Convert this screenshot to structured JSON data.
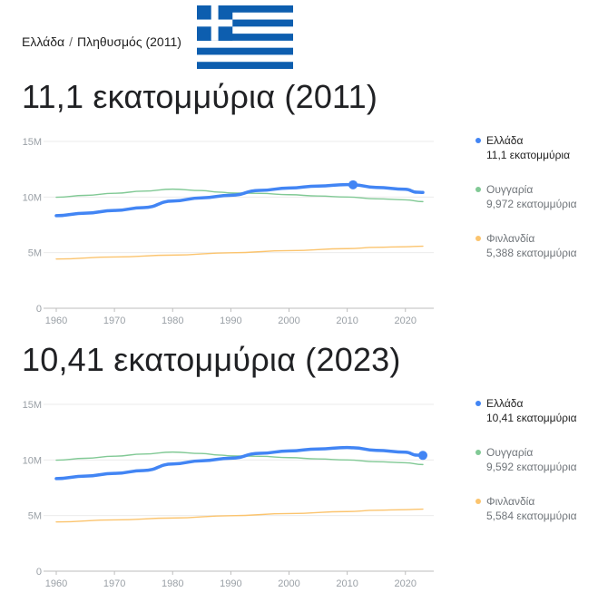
{
  "breadcrumb": {
    "country": "Ελλάδα",
    "separator": "/",
    "metric": "Πληθυσμός (2011)"
  },
  "flag": {
    "blue": "#0d5eaf",
    "white": "#ffffff"
  },
  "colors": {
    "greece": "#4285f4",
    "hungary": "#81c995",
    "finland": "#fbc46e",
    "grid": "#ebebeb",
    "axis": "#bdbdbd"
  },
  "charts": [
    {
      "headline": "11,1 εκατομμύρια (2011)",
      "legend": [
        {
          "name": "Ελλάδα",
          "value": "11,1 εκατομμύρια"
        },
        {
          "name": "Ουγγαρία",
          "value": "9,972 εκατομμύρια"
        },
        {
          "name": "Φινλανδία",
          "value": "5,388 εκατομμύρια"
        }
      ]
    },
    {
      "headline": "10,41 εκατομμύρια (2023)",
      "legend": [
        {
          "name": "Ελλάδα",
          "value": "10,41 εκατομμύρια"
        },
        {
          "name": "Ουγγαρία",
          "value": "9,592 εκατομμύρια"
        },
        {
          "name": "Φινλανδία",
          "value": "5,584 εκατομμύρια"
        }
      ]
    }
  ],
  "chart_data": [
    {
      "type": "line",
      "ylim": [
        0,
        15
      ],
      "xlim": [
        1960,
        2023
      ],
      "yticks": [
        "0",
        "5M",
        "10M",
        "15M"
      ],
      "yticks_values": [
        0,
        5,
        10,
        15
      ],
      "xticks": [
        1960,
        1970,
        1980,
        1990,
        2000,
        2010,
        2020
      ],
      "highlight_year": 2011,
      "series": [
        {
          "name": "Ελλάδα",
          "x": [
            1960,
            1965,
            1970,
            1975,
            1980,
            1985,
            1990,
            1995,
            2000,
            2005,
            2010,
            2011,
            2015,
            2020,
            2022,
            2023
          ],
          "values": [
            8.33,
            8.55,
            8.79,
            9.05,
            9.64,
            9.93,
            10.16,
            10.6,
            10.81,
            10.99,
            11.12,
            11.1,
            10.86,
            10.7,
            10.43,
            10.41
          ]
        },
        {
          "name": "Ουγγαρία",
          "x": [
            1960,
            1965,
            1970,
            1975,
            1980,
            1985,
            1988,
            1990,
            1995,
            2000,
            2005,
            2010,
            2015,
            2020,
            2023
          ],
          "values": [
            9.98,
            10.15,
            10.34,
            10.53,
            10.71,
            10.58,
            10.44,
            10.37,
            10.33,
            10.21,
            10.09,
            10.0,
            9.84,
            9.75,
            9.59
          ]
        },
        {
          "name": "Φινλανδία",
          "x": [
            1960,
            1970,
            1980,
            1990,
            2000,
            2010,
            2015,
            2020,
            2023
          ],
          "values": [
            4.43,
            4.61,
            4.78,
            4.99,
            5.18,
            5.36,
            5.48,
            5.53,
            5.58
          ]
        }
      ]
    },
    {
      "type": "line",
      "ylim": [
        0,
        15
      ],
      "xlim": [
        1960,
        2023
      ],
      "yticks": [
        "0",
        "5M",
        "10M",
        "15M"
      ],
      "yticks_values": [
        0,
        5,
        10,
        15
      ],
      "xticks": [
        1960,
        1970,
        1980,
        1990,
        2000,
        2010,
        2020
      ],
      "highlight_year": 2023,
      "series": [
        {
          "name": "Ελλάδα",
          "x": [
            1960,
            1965,
            1970,
            1975,
            1980,
            1985,
            1990,
            1995,
            2000,
            2005,
            2010,
            2011,
            2015,
            2020,
            2022,
            2023
          ],
          "values": [
            8.33,
            8.55,
            8.79,
            9.05,
            9.64,
            9.93,
            10.16,
            10.6,
            10.81,
            10.99,
            11.12,
            11.1,
            10.86,
            10.7,
            10.43,
            10.41
          ]
        },
        {
          "name": "Ουγγαρία",
          "x": [
            1960,
            1965,
            1970,
            1975,
            1980,
            1985,
            1988,
            1990,
            1995,
            2000,
            2005,
            2010,
            2015,
            2020,
            2023
          ],
          "values": [
            9.98,
            10.15,
            10.34,
            10.53,
            10.71,
            10.58,
            10.44,
            10.37,
            10.33,
            10.21,
            10.09,
            10.0,
            9.84,
            9.75,
            9.59
          ]
        },
        {
          "name": "Φινλανδία",
          "x": [
            1960,
            1970,
            1980,
            1990,
            2000,
            2010,
            2015,
            2020,
            2023
          ],
          "values": [
            4.43,
            4.61,
            4.78,
            4.99,
            5.18,
            5.36,
            5.48,
            5.53,
            5.58
          ]
        }
      ]
    }
  ]
}
